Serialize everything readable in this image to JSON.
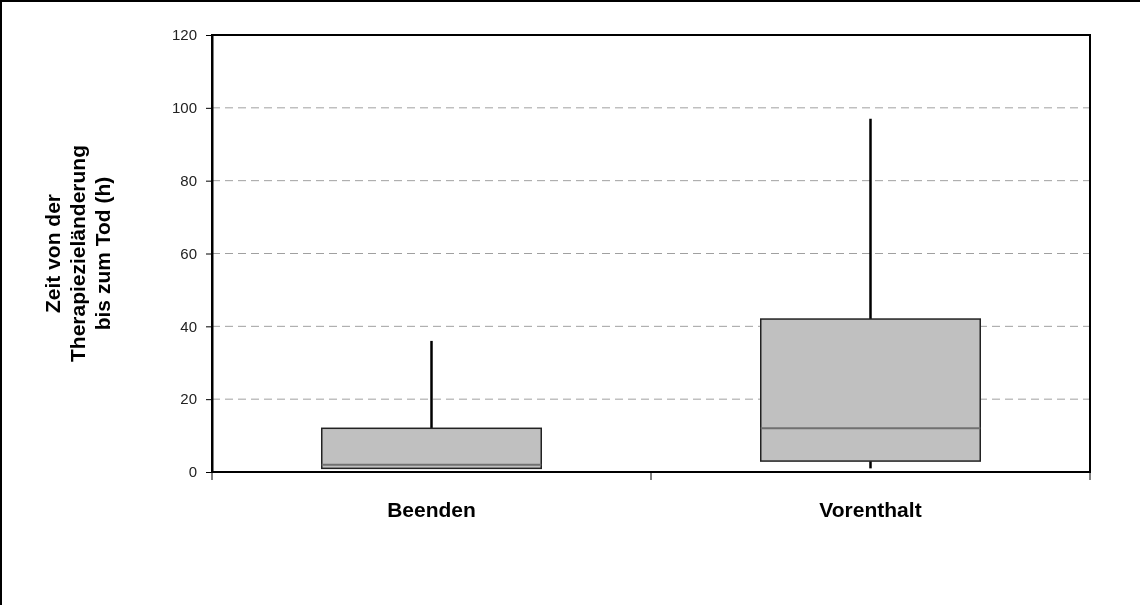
{
  "chart_data": {
    "type": "box",
    "ylabel": "Zeit von der Therapiezieländerung bis zum Tod (h)",
    "categories": [
      "Beenden",
      "Vorenthalt"
    ],
    "boxes": [
      {
        "low": 1,
        "q1": 1,
        "median": 2,
        "q3": 12,
        "high": 36
      },
      {
        "low": 1,
        "q1": 3,
        "median": 12,
        "q3": 42,
        "high": 97
      }
    ],
    "color": "#c0c0c0",
    "ylim": [
      0,
      120
    ],
    "yticks": [
      0,
      20,
      40,
      60,
      80,
      100,
      120
    ],
    "grid": "y"
  }
}
